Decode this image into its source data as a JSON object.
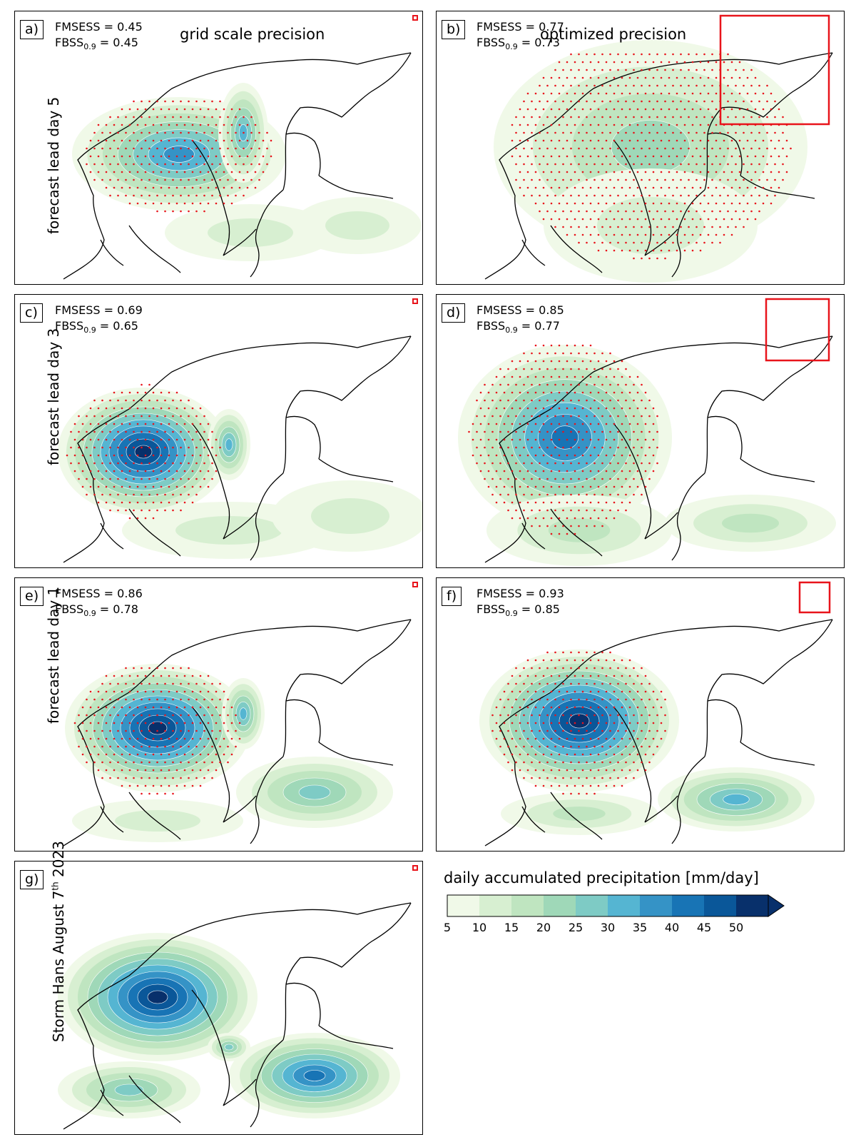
{
  "chart_data": [
    {
      "panel": "a)",
      "type": "heatmap",
      "title": "grid scale precision",
      "row_label": "forecast lead day 5",
      "scores": {
        "fmsess": "FMSESS = 0.45",
        "fbss_pre": "FBSS",
        "fbss_sub": "0.9",
        "fbss_post": " = 0.45"
      },
      "peak_mm_day": 35,
      "stippled": true
    },
    {
      "panel": "b)",
      "type": "heatmap",
      "title": "optimized precision",
      "scores": {
        "fmsess": "FMSESS = 0.77",
        "fbss_pre": "FBSS",
        "fbss_sub": "0.9",
        "fbss_post": " = 0.73"
      },
      "peak_mm_day": 20,
      "stippled": true
    },
    {
      "panel": "c)",
      "type": "heatmap",
      "row_label": "forecast lead day 3",
      "scores": {
        "fmsess": "FMSESS = 0.69",
        "fbss_pre": "FBSS",
        "fbss_sub": "0.9",
        "fbss_post": " = 0.65"
      },
      "peak_mm_day": 50,
      "stippled": true
    },
    {
      "panel": "d)",
      "type": "heatmap",
      "scores": {
        "fmsess": "FMSESS = 0.85",
        "fbss_pre": "FBSS",
        "fbss_sub": "0.9",
        "fbss_post": " = 0.77"
      },
      "peak_mm_day": 40,
      "stippled": true
    },
    {
      "panel": "e)",
      "type": "heatmap",
      "row_label": "forecast lead day 1",
      "scores": {
        "fmsess": "FMSESS = 0.86",
        "fbss_pre": "FBSS",
        "fbss_sub": "0.9",
        "fbss_post": " = 0.78"
      },
      "peak_mm_day": 50,
      "stippled": true
    },
    {
      "panel": "f)",
      "type": "heatmap",
      "scores": {
        "fmsess": "FMSESS = 0.93",
        "fbss_pre": "FBSS",
        "fbss_sub": "0.9",
        "fbss_post": " = 0.85"
      },
      "peak_mm_day": 50,
      "stippled": true
    },
    {
      "panel": "g)",
      "type": "heatmap",
      "row_label_pre": "Storm Hans August 7",
      "row_label_sup": "th",
      "row_label_post": " 2023",
      "peak_mm_day": 50,
      "stippled": false
    }
  ],
  "colorbar": {
    "title": "daily accumulated precipitation [mm/day]",
    "ticks": [
      "5",
      "10",
      "15",
      "20",
      "25",
      "30",
      "35",
      "40",
      "45",
      "50"
    ],
    "colors": [
      "#f0f9e8",
      "#d7efd1",
      "#bfe5c0",
      "#9fd8b8",
      "#7ecbc5",
      "#55b5d2",
      "#3593c6",
      "#1874b5",
      "#0a5799",
      "#08306b"
    ],
    "extend": "max"
  },
  "colors": {
    "stipple": "#e8141b",
    "scale_box": "#e8141b",
    "coastline": "#000000"
  }
}
